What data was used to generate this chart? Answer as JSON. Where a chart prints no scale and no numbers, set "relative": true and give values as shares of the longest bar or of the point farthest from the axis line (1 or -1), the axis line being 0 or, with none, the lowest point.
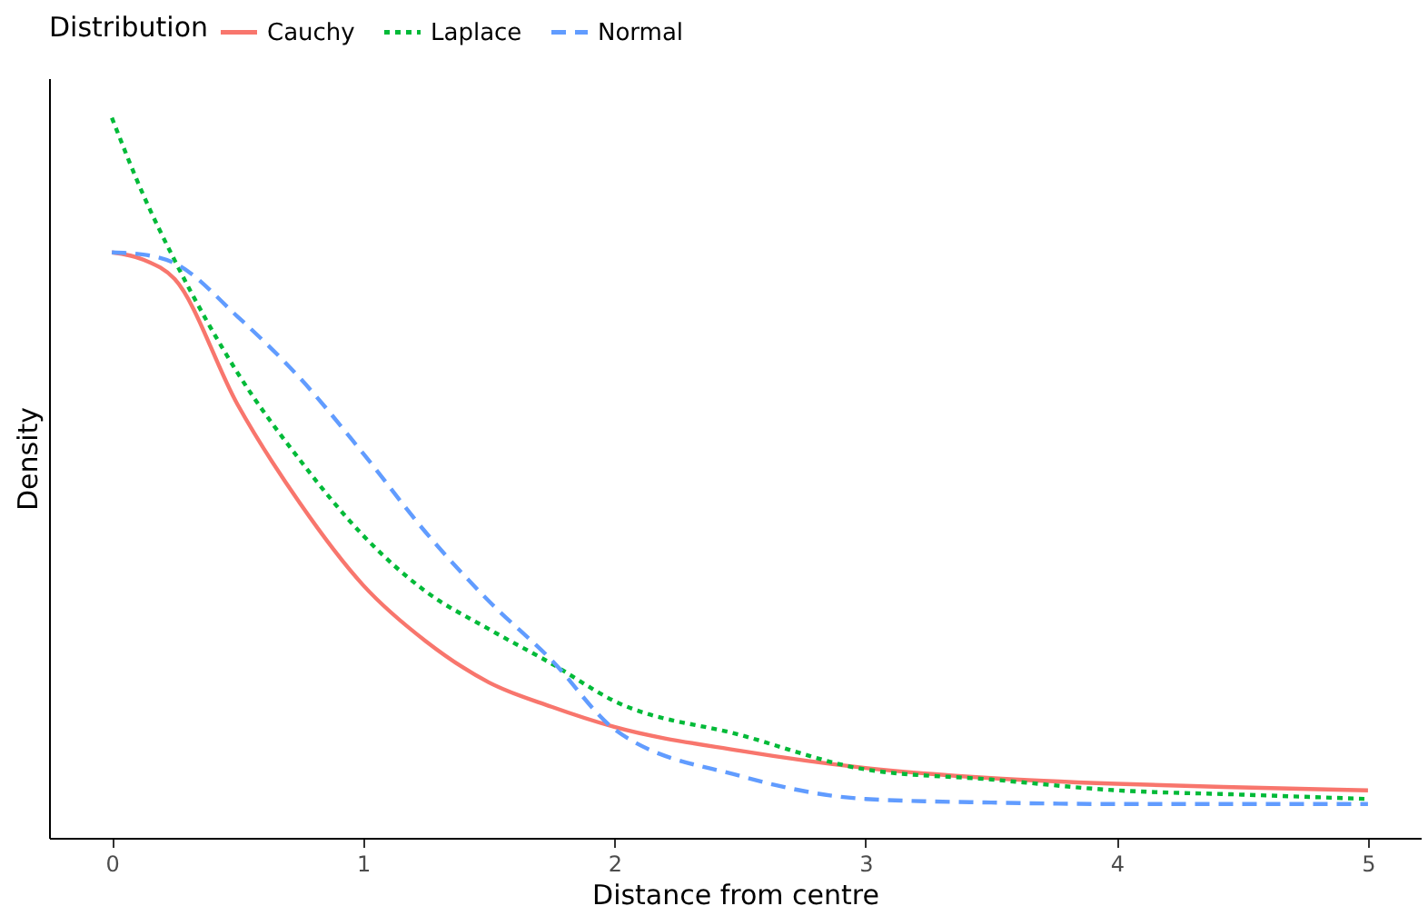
{
  "chart_data": {
    "type": "line",
    "xlabel": "Distance from centre",
    "ylabel": "Density",
    "legend_title": "Distribution",
    "legend": "top",
    "relative": true,
    "grid": false,
    "tick_labels": "x",
    "marker": "none",
    "x": [
      0,
      0.125,
      0.25,
      0.5,
      0.75,
      1,
      1.25,
      1.5,
      1.75,
      2,
      2.5,
      3,
      3.5,
      4,
      4.5,
      5
    ],
    "xlim": [
      -0.25,
      5.21
    ],
    "xticks": [
      0,
      1,
      2,
      3,
      4,
      5
    ],
    "series": [
      {
        "name": "Cauchy",
        "color": "#f8766d",
        "line_style": "solid",
        "values": [
          0.813,
          0.803,
          0.776,
          0.602,
          0.464,
          0.351,
          0.273,
          0.216,
          0.182,
          0.154,
          0.121,
          0.097,
          0.083,
          0.075,
          0.07,
          0.066
        ]
      },
      {
        "name": "Laplace",
        "color": "#00ba38",
        "line_style": "dotted",
        "values": [
          1.0,
          0.893,
          0.802,
          0.646,
          0.524,
          0.42,
          0.342,
          0.29,
          0.242,
          0.19,
          0.143,
          0.095,
          0.081,
          0.066,
          0.06,
          0.054
        ]
      },
      {
        "name": "Normal",
        "color": "#619cff",
        "line_style": "dashed",
        "values": [
          0.813,
          0.81,
          0.798,
          0.724,
          0.638,
          0.534,
          0.424,
          0.329,
          0.247,
          0.151,
          0.086,
          0.054,
          0.049,
          0.047,
          0.047,
          0.047
        ]
      }
    ]
  }
}
